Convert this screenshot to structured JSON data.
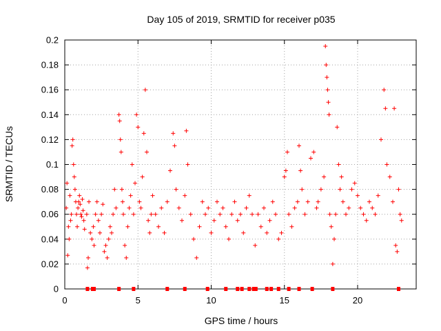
{
  "chart_data": {
    "type": "scatter",
    "title": "Day 105 of 2019, SRMTID for receiver p035",
    "xlabel": "GPS time / hours",
    "ylabel": "SRMTID / TECUs",
    "xlim": [
      0,
      24
    ],
    "ylim": [
      0,
      0.2
    ],
    "x_ticks": [
      0,
      5,
      10,
      15,
      20
    ],
    "x_tick_labels": [
      "0",
      "5",
      "10",
      "15",
      "20"
    ],
    "y_ticks": [
      0,
      0.02,
      0.04,
      0.06,
      0.08,
      0.1,
      0.12,
      0.14,
      0.16,
      0.18,
      0.2
    ],
    "y_tick_labels": [
      "0",
      "0.02",
      "0.04",
      "0.06",
      "0.08",
      "0.1",
      "0.12",
      "0.14",
      "0.16",
      "0.18",
      "0.2"
    ],
    "grid": true,
    "marker": "+",
    "color": "#ff0000",
    "series": [
      {
        "name": "SRMTID",
        "points": [
          [
            0.1,
            0.065
          ],
          [
            0.15,
            0.085
          ],
          [
            0.2,
            0.027
          ],
          [
            0.25,
            0.05
          ],
          [
            0.3,
            0.04
          ],
          [
            0.35,
            0.075
          ],
          [
            0.4,
            0.055
          ],
          [
            0.45,
            0.06
          ],
          [
            0.5,
            0.115
          ],
          [
            0.55,
            0.12
          ],
          [
            0.6,
            0.1
          ],
          [
            0.65,
            0.09
          ],
          [
            0.7,
            0.08
          ],
          [
            0.75,
            0.07
          ],
          [
            0.8,
            0.06
          ],
          [
            0.85,
            0.05
          ],
          [
            0.9,
            0.065
          ],
          [
            0.95,
            0.07
          ],
          [
            1.0,
            0.075
          ],
          [
            1.05,
            0.068
          ],
          [
            1.1,
            0.06
          ],
          [
            1.15,
            0.058
          ],
          [
            1.2,
            0.072
          ],
          [
            1.25,
            0.063
          ],
          [
            1.3,
            0.055
          ],
          [
            1.35,
            0.048
          ],
          [
            1.5,
            0.06
          ],
          [
            1.55,
            0.017
          ],
          [
            1.6,
            0.025
          ],
          [
            1.65,
            0.07
          ],
          [
            1.75,
            0.045
          ],
          [
            1.85,
            0.04
          ],
          [
            1.95,
            0.05
          ],
          [
            2.0,
            0.035
          ],
          [
            2.1,
            0.06
          ],
          [
            2.2,
            0.07
          ],
          [
            2.3,
            0.055
          ],
          [
            2.4,
            0.045
          ],
          [
            2.5,
            0.06
          ],
          [
            2.6,
            0.068
          ],
          [
            2.7,
            0.03
          ],
          [
            2.8,
            0.035
          ],
          [
            2.9,
            0.025
          ],
          [
            3.0,
            0.04
          ],
          [
            3.1,
            0.05
          ],
          [
            3.2,
            0.045
          ],
          [
            3.3,
            0.06
          ],
          [
            3.4,
            0.08
          ],
          [
            3.5,
            0.065
          ],
          [
            3.7,
            0.14
          ],
          [
            3.75,
            0.135
          ],
          [
            3.8,
            0.12
          ],
          [
            3.85,
            0.11
          ],
          [
            3.9,
            0.08
          ],
          [
            3.95,
            0.07
          ],
          [
            4.0,
            0.06
          ],
          [
            4.1,
            0.035
          ],
          [
            4.2,
            0.025
          ],
          [
            4.3,
            0.05
          ],
          [
            4.4,
            0.065
          ],
          [
            4.5,
            0.075
          ],
          [
            4.6,
            0.1
          ],
          [
            4.7,
            0.06
          ],
          [
            4.8,
            0.085
          ],
          [
            4.9,
            0.14
          ],
          [
            5.0,
            0.13
          ],
          [
            5.1,
            0.07
          ],
          [
            5.2,
            0.065
          ],
          [
            5.3,
            0.09
          ],
          [
            5.4,
            0.125
          ],
          [
            5.5,
            0.16
          ],
          [
            5.6,
            0.11
          ],
          [
            5.7,
            0.055
          ],
          [
            5.8,
            0.045
          ],
          [
            5.9,
            0.06
          ],
          [
            6.0,
            0.075
          ],
          [
            6.2,
            0.06
          ],
          [
            6.4,
            0.05
          ],
          [
            6.6,
            0.065
          ],
          [
            6.8,
            0.045
          ],
          [
            7.0,
            0.07
          ],
          [
            7.2,
            0.095
          ],
          [
            7.4,
            0.125
          ],
          [
            7.5,
            0.115
          ],
          [
            7.6,
            0.08
          ],
          [
            7.8,
            0.065
          ],
          [
            8.0,
            0.055
          ],
          [
            8.2,
            0.075
          ],
          [
            8.3,
            0.127
          ],
          [
            8.4,
            0.1
          ],
          [
            8.6,
            0.06
          ],
          [
            8.8,
            0.04
          ],
          [
            9.0,
            0.025
          ],
          [
            9.2,
            0.05
          ],
          [
            9.4,
            0.07
          ],
          [
            9.6,
            0.06
          ],
          [
            9.8,
            0.065
          ],
          [
            10.0,
            0.045
          ],
          [
            10.2,
            0.055
          ],
          [
            10.4,
            0.07
          ],
          [
            10.6,
            0.06
          ],
          [
            10.8,
            0.065
          ],
          [
            11.0,
            0.05
          ],
          [
            11.2,
            0.04
          ],
          [
            11.4,
            0.06
          ],
          [
            11.6,
            0.07
          ],
          [
            11.8,
            0.055
          ],
          [
            12.0,
            0.06
          ],
          [
            12.2,
            0.045
          ],
          [
            12.4,
            0.065
          ],
          [
            12.6,
            0.075
          ],
          [
            12.8,
            0.06
          ],
          [
            13.0,
            0.035
          ],
          [
            13.2,
            0.06
          ],
          [
            13.4,
            0.05
          ],
          [
            13.6,
            0.065
          ],
          [
            13.8,
            0.045
          ],
          [
            14.0,
            0.055
          ],
          [
            14.2,
            0.07
          ],
          [
            14.4,
            0.06
          ],
          [
            14.6,
            0.04
          ],
          [
            14.8,
            0.045
          ],
          [
            15.0,
            0.09
          ],
          [
            15.1,
            0.095
          ],
          [
            15.2,
            0.11
          ],
          [
            15.3,
            0.06
          ],
          [
            15.5,
            0.05
          ],
          [
            15.7,
            0.065
          ],
          [
            15.9,
            0.07
          ],
          [
            16.0,
            0.115
          ],
          [
            16.1,
            0.095
          ],
          [
            16.2,
            0.08
          ],
          [
            16.4,
            0.06
          ],
          [
            16.6,
            0.07
          ],
          [
            16.8,
            0.105
          ],
          [
            17.0,
            0.11
          ],
          [
            17.2,
            0.065
          ],
          [
            17.3,
            0.07
          ],
          [
            17.5,
            0.08
          ],
          [
            17.7,
            0.09
          ],
          [
            17.8,
            0.195
          ],
          [
            17.85,
            0.18
          ],
          [
            17.9,
            0.17
          ],
          [
            17.95,
            0.16
          ],
          [
            18.0,
            0.15
          ],
          [
            18.05,
            0.14
          ],
          [
            18.1,
            0.06
          ],
          [
            18.2,
            0.05
          ],
          [
            18.3,
            0.02
          ],
          [
            18.4,
            0.04
          ],
          [
            18.5,
            0.06
          ],
          [
            18.6,
            0.13
          ],
          [
            18.7,
            0.1
          ],
          [
            18.8,
            0.08
          ],
          [
            18.9,
            0.09
          ],
          [
            19.0,
            0.07
          ],
          [
            19.2,
            0.06
          ],
          [
            19.4,
            0.065
          ],
          [
            19.6,
            0.08
          ],
          [
            19.8,
            0.085
          ],
          [
            20.0,
            0.075
          ],
          [
            20.2,
            0.065
          ],
          [
            20.4,
            0.06
          ],
          [
            20.6,
            0.055
          ],
          [
            20.8,
            0.07
          ],
          [
            21.0,
            0.065
          ],
          [
            21.2,
            0.06
          ],
          [
            21.4,
            0.075
          ],
          [
            21.6,
            0.12
          ],
          [
            21.8,
            0.16
          ],
          [
            21.9,
            0.145
          ],
          [
            22.0,
            0.1
          ],
          [
            22.2,
            0.09
          ],
          [
            22.4,
            0.07
          ],
          [
            22.5,
            0.145
          ],
          [
            22.6,
            0.035
          ],
          [
            22.7,
            0.03
          ],
          [
            22.8,
            0.08
          ],
          [
            22.9,
            0.06
          ],
          [
            23.0,
            0.055
          ]
        ]
      }
    ],
    "zero_points_x": [
      1.55,
      1.9,
      2.0,
      3.7,
      4.7,
      7.0,
      8.2,
      9.75,
      11.0,
      11.8,
      12.1,
      12.6,
      12.9,
      13.05,
      13.8,
      14.1,
      14.6,
      15.3,
      16.0,
      16.9,
      18.3,
      22.8
    ]
  }
}
